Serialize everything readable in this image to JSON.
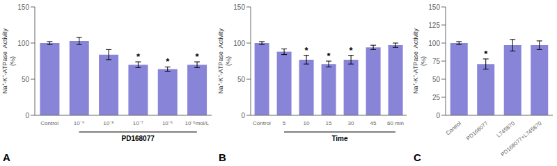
{
  "chart_data": [
    {
      "type": "bar",
      "title": "A",
      "categories": [
        "Control",
        "10⁻⁹",
        "10⁻⁸",
        "10⁻⁷",
        "10⁻⁶",
        "10⁻⁵mol/L"
      ],
      "values": [
        100,
        103,
        84,
        70,
        64,
        70
      ],
      "errors": [
        2,
        5,
        7,
        4,
        3,
        4
      ],
      "ylabel": "Na⁺-K⁺-ATPase  Activity\n(%)",
      "ylim": [
        0,
        150
      ],
      "yticks": [
        0,
        50,
        100,
        150
      ],
      "annotations": [
        {
          "text": "*",
          "x": "10⁻⁷"
        },
        {
          "text": "*",
          "x": "10⁻⁶"
        },
        {
          "text": "*",
          "x": "10⁻⁵mol/L"
        },
        {
          "text": "PD168077",
          "from": "10⁻⁹",
          "to": "10⁻⁵mol/L"
        }
      ],
      "color": "#8884d8",
      "grid": false
    },
    {
      "type": "bar",
      "title": "B",
      "categories": [
        "Control",
        "5",
        "10",
        "15",
        "30",
        "45",
        "60 min"
      ],
      "values": [
        100,
        88,
        77,
        71,
        77,
        94,
        97
      ],
      "errors": [
        2,
        4,
        6,
        4,
        6,
        3,
        3
      ],
      "ylabel": "Na⁺-K⁺-ATPase  Activity\n(%)",
      "ylim": [
        0,
        150
      ],
      "yticks": [
        0,
        50,
        100,
        150
      ],
      "annotations": [
        {
          "text": "*",
          "x": "10"
        },
        {
          "text": "*",
          "x": "15"
        },
        {
          "text": "*",
          "x": "30"
        },
        {
          "text": "Time",
          "from": "5",
          "to": "60 min"
        }
      ],
      "color": "#8884d8",
      "grid": false
    },
    {
      "type": "bar",
      "title": "C",
      "categories": [
        "Control",
        "PD168077",
        "L745870",
        "PD168077+L745870"
      ],
      "values": [
        100,
        71,
        97,
        97
      ],
      "errors": [
        2,
        7,
        8,
        6
      ],
      "ylabel": "Na⁺-K⁺-ATPase  Activity\n(%)",
      "ylim": [
        0,
        150
      ],
      "yticks": [
        0,
        25,
        50,
        75,
        100,
        125,
        150
      ],
      "annotations": [
        {
          "text": "*",
          "x": "PD168077"
        }
      ],
      "color": "#8884d8",
      "grid": false
    }
  ]
}
